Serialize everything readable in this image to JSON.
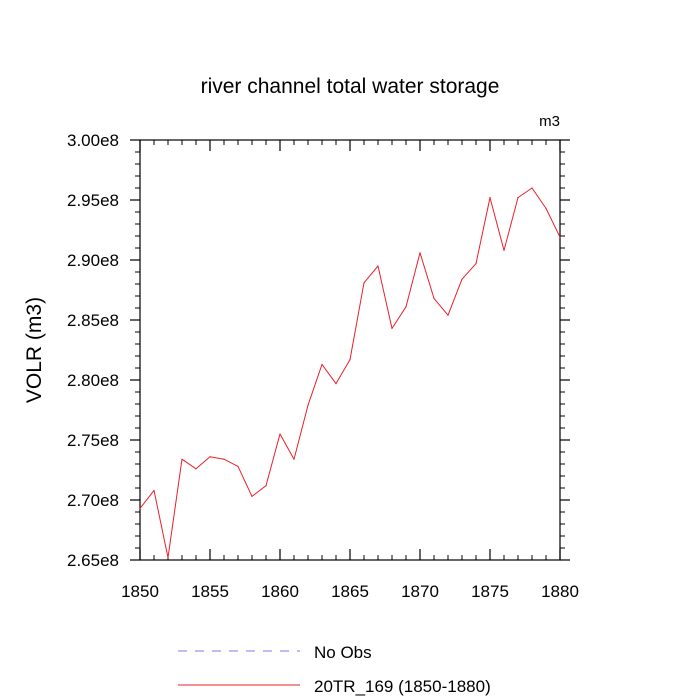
{
  "chart_data": {
    "type": "line",
    "title": "river channel total water storage",
    "units_label": "m3",
    "ylabel": "VOLR  (m3)",
    "xlabel": "",
    "xlim": [
      1850,
      1880
    ],
    "ylim": [
      265000000.0,
      300000000.0
    ],
    "x_ticks": [
      1850,
      1855,
      1860,
      1865,
      1870,
      1875,
      1880
    ],
    "x_tick_labels": [
      "1850",
      "1855",
      "1860",
      "1865",
      "1870",
      "1875",
      "1880"
    ],
    "y_ticks": [
      265000000.0,
      270000000.0,
      275000000.0,
      280000000.0,
      285000000.0,
      290000000.0,
      295000000.0,
      300000000.0
    ],
    "y_tick_labels": [
      "2.65e8",
      "2.70e8",
      "2.75e8",
      "2.80e8",
      "2.85e8",
      "2.90e8",
      "2.95e8",
      "3.00e8"
    ],
    "grid": false,
    "legend_position": "bottom",
    "legend": [
      {
        "label": "No Obs",
        "color": "#7b7bf0",
        "style": "dashed"
      },
      {
        "label": "20TR_169 (1850-1880)",
        "color": "#e8202a",
        "style": "solid"
      }
    ],
    "series": [
      {
        "name": "20TR_169 (1850-1880)",
        "color": "#e8202a",
        "x": [
          1850,
          1851,
          1852,
          1853,
          1854,
          1855,
          1856,
          1857,
          1858,
          1859,
          1860,
          1861,
          1862,
          1863,
          1864,
          1865,
          1866,
          1867,
          1868,
          1869,
          1870,
          1871,
          1872,
          1873,
          1874,
          1875,
          1876,
          1877,
          1878,
          1879,
          1880
        ],
        "values": [
          269300000.0,
          270800000.0,
          265200000.0,
          273400000.0,
          272600000.0,
          273600000.0,
          273400000.0,
          272800000.0,
          270300000.0,
          271200000.0,
          275500000.0,
          273400000.0,
          277900000.0,
          281300000.0,
          279700000.0,
          281700000.0,
          288100000.0,
          289500000.0,
          284300000.0,
          286100000.0,
          290600000.0,
          286800000.0,
          285400000.0,
          288400000.0,
          289700000.0,
          295200000.0,
          290800000.0,
          295200000.0,
          296000000.0,
          294300000.0,
          291900000.0
        ]
      }
    ]
  }
}
